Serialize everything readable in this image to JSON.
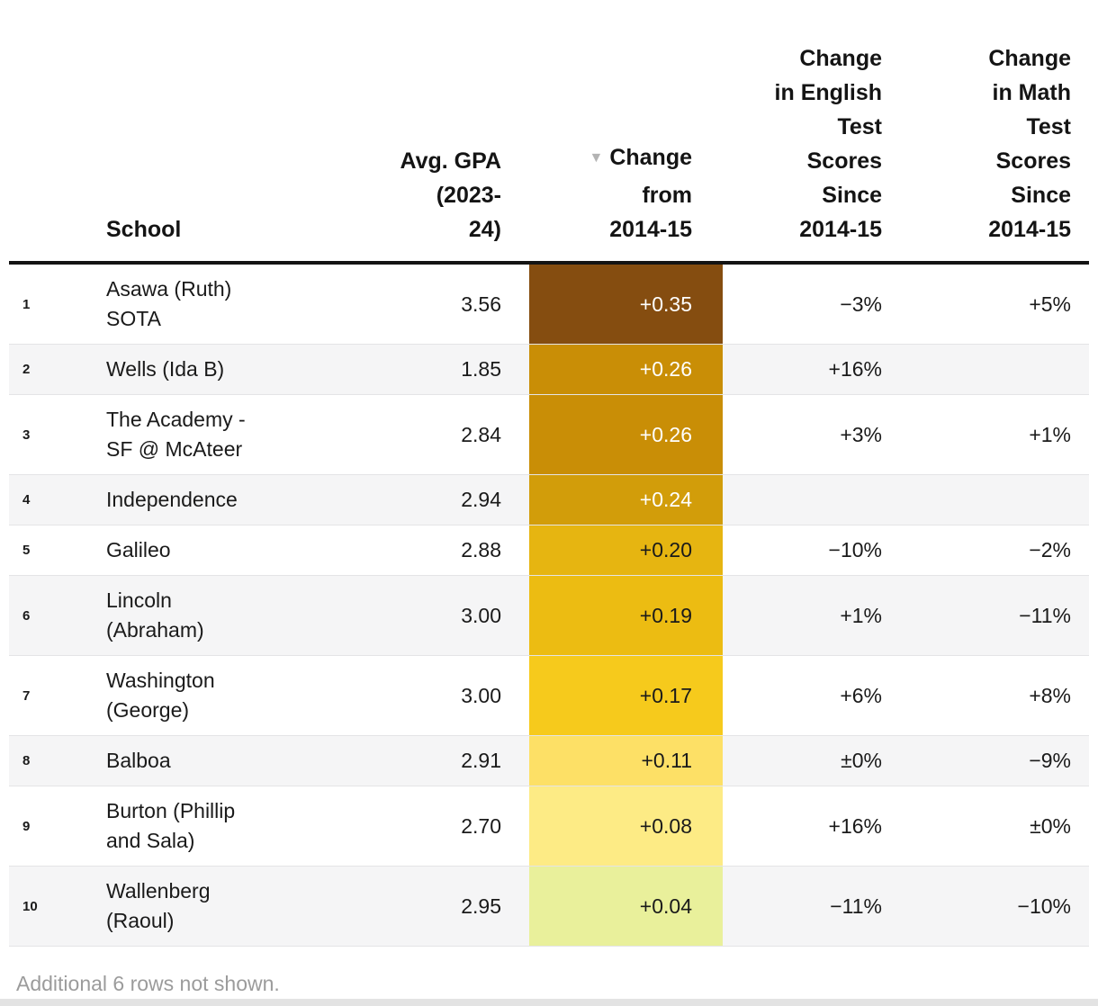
{
  "table": {
    "sort_icon": "▼",
    "sort": {
      "column": "Change from 2014-15",
      "direction": "descending"
    },
    "columns": {
      "rank": "",
      "school": "School",
      "gpa": "Avg. GPA\n(2023-\n24)",
      "change": "Change\nfrom\n2014-15",
      "english": "Change\nin English\nTest\nScores\nSince\n2014-15",
      "math": "Change\nin Math\nTest\nScores\nSince\n2014-15"
    },
    "rows": [
      {
        "rank": "1",
        "school": "Asawa (Ruth)\nSOTA",
        "gpa": "3.56",
        "change": "+0.35",
        "english": "−3%",
        "math": "+5%",
        "change_bg": "#854D10",
        "change_color": "#ffffff"
      },
      {
        "rank": "2",
        "school": "Wells (Ida B)",
        "gpa": "1.85",
        "change": "+0.26",
        "english": "+16%",
        "math": "",
        "change_bg": "#C98E06",
        "change_color": "#ffffff"
      },
      {
        "rank": "3",
        "school": "The Academy -\nSF @ McAteer",
        "gpa": "2.84",
        "change": "+0.26",
        "english": "+3%",
        "math": "+1%",
        "change_bg": "#C98E06",
        "change_color": "#ffffff"
      },
      {
        "rank": "4",
        "school": "Independence",
        "gpa": "2.94",
        "change": "+0.24",
        "english": "",
        "math": "",
        "change_bg": "#D29D0A",
        "change_color": "#ffffff"
      },
      {
        "rank": "5",
        "school": "Galileo",
        "gpa": "2.88",
        "change": "+0.20",
        "english": "−10%",
        "math": "−2%",
        "change_bg": "#E6B511",
        "change_color": "#1a1a1a"
      },
      {
        "rank": "6",
        "school": "Lincoln\n(Abraham)",
        "gpa": "3.00",
        "change": "+0.19",
        "english": "+1%",
        "math": "−11%",
        "change_bg": "#ECBC12",
        "change_color": "#1a1a1a"
      },
      {
        "rank": "7",
        "school": "Washington\n(George)",
        "gpa": "3.00",
        "change": "+0.17",
        "english": "+6%",
        "math": "+8%",
        "change_bg": "#F6CA1C",
        "change_color": "#1a1a1a"
      },
      {
        "rank": "8",
        "school": "Balboa",
        "gpa": "2.91",
        "change": "+0.11",
        "english": "±0%",
        "math": "−9%",
        "change_bg": "#FDE066",
        "change_color": "#1a1a1a"
      },
      {
        "rank": "9",
        "school": "Burton (Phillip\nand Sala)",
        "gpa": "2.70",
        "change": "+0.08",
        "english": "+16%",
        "math": "±0%",
        "change_bg": "#FDEB85",
        "change_color": "#1a1a1a"
      },
      {
        "rank": "10",
        "school": "Wallenberg\n(Raoul)",
        "gpa": "2.95",
        "change": "+0.04",
        "english": "−11%",
        "math": "−10%",
        "change_bg": "#E9F09B",
        "change_color": "#1a1a1a"
      }
    ],
    "footnote": "Additional 6 rows not shown."
  },
  "chart_data": {
    "type": "table",
    "title": "",
    "columns": [
      "School",
      "Avg. GPA (2023-24)",
      "Change from 2014-15",
      "Change in English Test Scores Since 2014-15",
      "Change in Math Test Scores Since 2014-15"
    ],
    "heatmap_column": "Change from 2014-15",
    "sorted_by": "Change from 2014-15 (descending)",
    "rows": [
      {
        "rank": 1,
        "school": "Asawa (Ruth) SOTA",
        "avg_gpa_2023_24": 3.56,
        "gpa_change_since_2014_15": 0.35,
        "english_change_pct": -3,
        "math_change_pct": 5
      },
      {
        "rank": 2,
        "school": "Wells (Ida B)",
        "avg_gpa_2023_24": 1.85,
        "gpa_change_since_2014_15": 0.26,
        "english_change_pct": 16,
        "math_change_pct": null
      },
      {
        "rank": 3,
        "school": "The Academy - SF @ McAteer",
        "avg_gpa_2023_24": 2.84,
        "gpa_change_since_2014_15": 0.26,
        "english_change_pct": 3,
        "math_change_pct": 1
      },
      {
        "rank": 4,
        "school": "Independence",
        "avg_gpa_2023_24": 2.94,
        "gpa_change_since_2014_15": 0.24,
        "english_change_pct": null,
        "math_change_pct": null
      },
      {
        "rank": 5,
        "school": "Galileo",
        "avg_gpa_2023_24": 2.88,
        "gpa_change_since_2014_15": 0.2,
        "english_change_pct": -10,
        "math_change_pct": -2
      },
      {
        "rank": 6,
        "school": "Lincoln (Abraham)",
        "avg_gpa_2023_24": 3.0,
        "gpa_change_since_2014_15": 0.19,
        "english_change_pct": 1,
        "math_change_pct": -11
      },
      {
        "rank": 7,
        "school": "Washington (George)",
        "avg_gpa_2023_24": 3.0,
        "gpa_change_since_2014_15": 0.17,
        "english_change_pct": 6,
        "math_change_pct": 8
      },
      {
        "rank": 8,
        "school": "Balboa",
        "avg_gpa_2023_24": 2.91,
        "gpa_change_since_2014_15": 0.11,
        "english_change_pct": 0,
        "math_change_pct": -9
      },
      {
        "rank": 9,
        "school": "Burton (Phillip and Sala)",
        "avg_gpa_2023_24": 2.7,
        "gpa_change_since_2014_15": 0.08,
        "english_change_pct": 16,
        "math_change_pct": 0
      },
      {
        "rank": 10,
        "school": "Wallenberg (Raoul)",
        "avg_gpa_2023_24": 2.95,
        "gpa_change_since_2014_15": 0.04,
        "english_change_pct": -11,
        "math_change_pct": -10
      }
    ],
    "note": "Additional 6 rows not shown.",
    "color_scale": [
      "#854D10",
      "#C98E06",
      "#D29D0A",
      "#E6B511",
      "#F6CA1C",
      "#FDE066",
      "#FDEB85",
      "#E9F09B"
    ]
  }
}
